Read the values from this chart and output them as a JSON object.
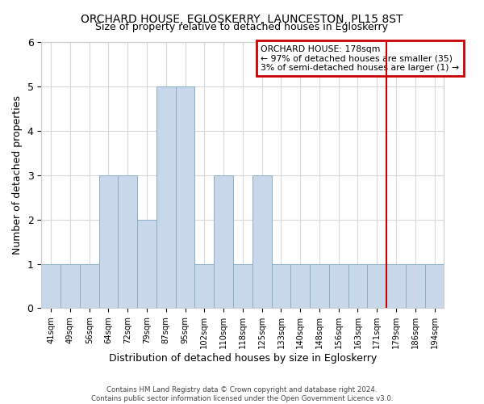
{
  "title": "ORCHARD HOUSE, EGLOSKERRY, LAUNCESTON, PL15 8ST",
  "subtitle": "Size of property relative to detached houses in Egloskerry",
  "xlabel": "Distribution of detached houses by size in Egloskerry",
  "ylabel": "Number of detached properties",
  "bin_labels": [
    "41sqm",
    "49sqm",
    "56sqm",
    "64sqm",
    "72sqm",
    "79sqm",
    "87sqm",
    "95sqm",
    "102sqm",
    "110sqm",
    "118sqm",
    "125sqm",
    "133sqm",
    "140sqm",
    "148sqm",
    "156sqm",
    "163sqm",
    "171sqm",
    "179sqm",
    "186sqm",
    "194sqm"
  ],
  "bar_heights": [
    1,
    1,
    1,
    3,
    3,
    2,
    5,
    5,
    1,
    3,
    1,
    3,
    1,
    1,
    1,
    1,
    1,
    1,
    1,
    1,
    1
  ],
  "bar_color": "#c8d8ea",
  "bar_edge_color": "#8aaec8",
  "ylim": [
    0,
    6
  ],
  "yticks": [
    0,
    1,
    2,
    3,
    4,
    5,
    6
  ],
  "orchard_house_bin_index": 18,
  "annotation_title": "ORCHARD HOUSE: 178sqm",
  "annotation_line1": "← 97% of detached houses are smaller (35)",
  "annotation_line2": "3% of semi-detached houses are larger (1) →",
  "annotation_box_color": "#ffffff",
  "annotation_box_edge": "#cc0000",
  "vline_color": "#cc0000",
  "footer1": "Contains HM Land Registry data © Crown copyright and database right 2024.",
  "footer2": "Contains public sector information licensed under the Open Government Licence v3.0.",
  "background_color": "#ffffff",
  "grid_color": "#d8d8d8"
}
